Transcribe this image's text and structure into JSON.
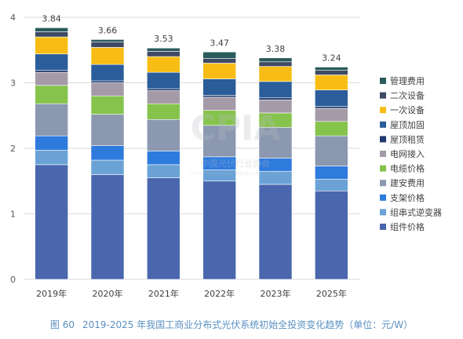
{
  "chart_data": {
    "type": "bar",
    "stacked": true,
    "categories": [
      "2019年",
      "2020年",
      "2021年",
      "2022年",
      "2023年",
      "2025年"
    ],
    "totals": [
      "3.84",
      "3.66",
      "3.53",
      "3.47",
      "3.38",
      "3.24"
    ],
    "ylim": [
      0,
      4
    ],
    "yticks": [
      "0",
      "1",
      "2",
      "3",
      "4"
    ],
    "grid": true,
    "legend_position": "right",
    "series": [
      {
        "name": "组件价格",
        "color": "#4a67ad",
        "values": [
          1.75,
          1.6,
          1.55,
          1.5,
          1.45,
          1.35
        ]
      },
      {
        "name": "组串式逆变器",
        "color": "#6aa2d6",
        "values": [
          0.22,
          0.22,
          0.2,
          0.17,
          0.2,
          0.18
        ]
      },
      {
        "name": "支架价格",
        "color": "#2e7bde",
        "values": [
          0.22,
          0.22,
          0.21,
          0.2,
          0.2,
          0.2
        ]
      },
      {
        "name": "建安费用",
        "color": "#8b98b0",
        "values": [
          0.49,
          0.48,
          0.48,
          0.48,
          0.47,
          0.46
        ]
      },
      {
        "name": "电缆价格",
        "color": "#86c34c",
        "values": [
          0.28,
          0.28,
          0.24,
          0.23,
          0.22,
          0.22
        ]
      },
      {
        "name": "电网接入",
        "color": "#a49aa8",
        "values": [
          0.2,
          0.2,
          0.2,
          0.2,
          0.2,
          0.2
        ]
      },
      {
        "name": "屋顶租赁",
        "color": "#1f3a6e",
        "values": [
          0.03,
          0.03,
          0.03,
          0.03,
          0.03,
          0.03
        ]
      },
      {
        "name": "屋顶加固",
        "color": "#2a5d9a",
        "values": [
          0.25,
          0.25,
          0.25,
          0.25,
          0.25,
          0.25
        ]
      },
      {
        "name": "一次设备",
        "color": "#f7bd14",
        "values": [
          0.26,
          0.26,
          0.24,
          0.24,
          0.23,
          0.23
        ]
      },
      {
        "name": "二次设备",
        "color": "#3e4a63",
        "values": [
          0.08,
          0.08,
          0.08,
          0.07,
          0.07,
          0.07
        ]
      },
      {
        "name": "管理费用",
        "color": "#2b5a5c",
        "values": [
          0.06,
          0.04,
          0.05,
          0.1,
          0.06,
          0.05
        ]
      }
    ]
  },
  "caption": {
    "figure_label": "图 60",
    "text": "2019-2025 年我国工商业分布式光伏系统初始全投资变化趋势（单位：元/W）"
  },
  "watermark": {
    "logo_text": "CPIA",
    "cn_text": "中国光伏行业协会",
    "en_text": "China Photovoltaic Industry Association"
  }
}
